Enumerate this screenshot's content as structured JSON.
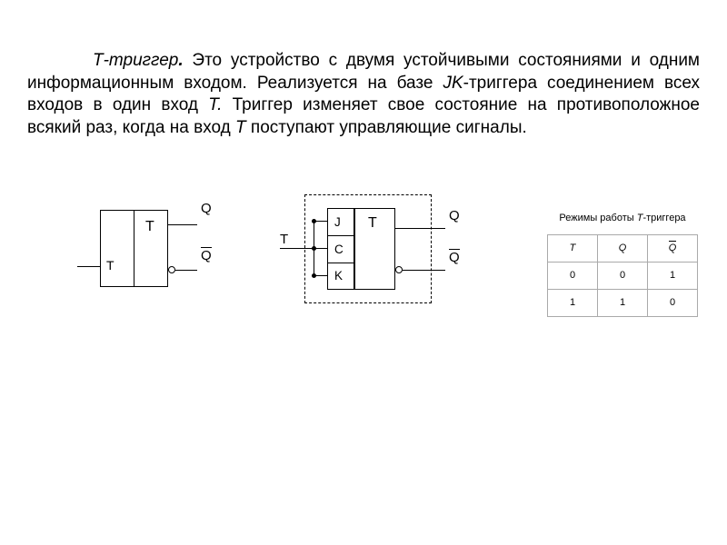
{
  "paragraph": {
    "p1_i": "Т-триггер",
    "p1_bi": ".",
    "p1_a": " Это устройство с двумя устойчивыми состояниями и одним информационным входом. Реализуется на базе ",
    "p2_i": "JK",
    "p2_a": "-триггера соединением всех входов в один вход ",
    "p3_i": "Т.",
    "p3_a": " Триггер изменяет свое состояние на противоположное всякий раз, когда на вход ",
    "p4_i": "Т",
    "p4_a": " поступают управляющие сигналы."
  },
  "diagram1": {
    "T_input": "T",
    "T_block": "T",
    "Q": "Q",
    "Qbar": "Q"
  },
  "diagram2": {
    "T": "T",
    "J": "J",
    "C": "C",
    "K": "K",
    "Tblock": "T",
    "Q": "Q",
    "Qbar": "Q"
  },
  "table": {
    "title_a": "Режимы работы ",
    "title_i": "Т",
    "title_b": "-триггера",
    "headers": {
      "T": "T",
      "Q": "Q",
      "Qbar": "Q"
    },
    "rows": [
      {
        "t": "0",
        "q": "0",
        "qb": "1"
      },
      {
        "t": "1",
        "q": "1",
        "qb": "0"
      }
    ]
  },
  "colors": {
    "background": "#ffffff",
    "text": "#000000",
    "table_border": "#aaaaaa"
  }
}
